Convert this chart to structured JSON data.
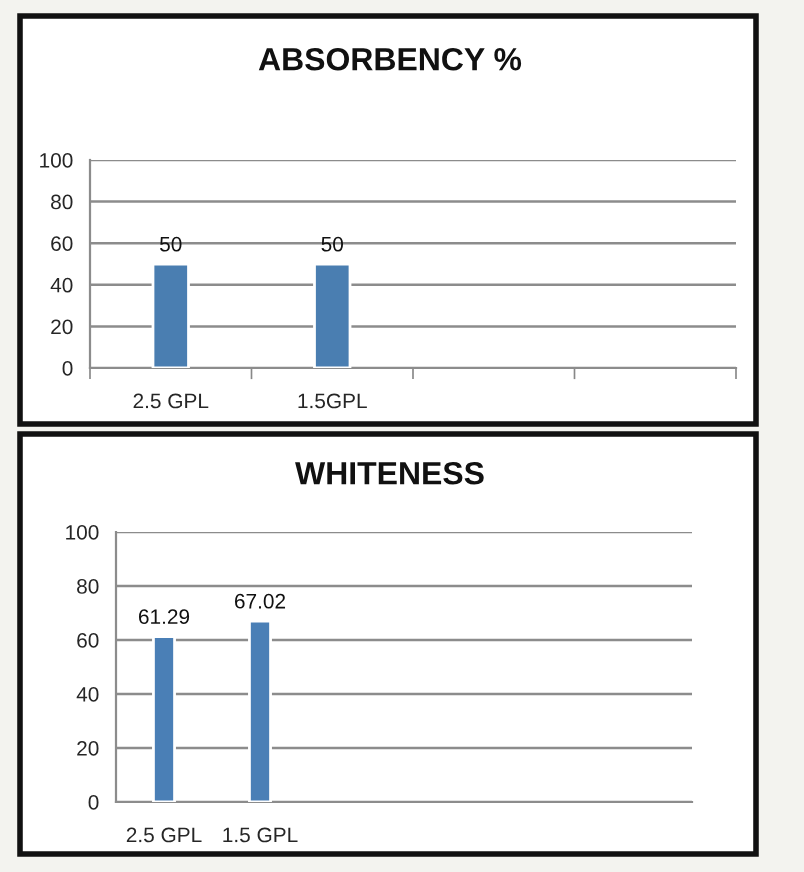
{
  "chart_data": [
    {
      "type": "bar",
      "title": "ABSORBENCY %",
      "categories": [
        "2.5 GPL",
        "1.5GPL",
        null,
        null
      ],
      "series": [
        {
          "color": "#4a7eb1",
          "values": [
            50,
            50,
            null,
            null
          ]
        }
      ],
      "ylim": [
        0,
        100
      ],
      "yticks": [
        0,
        20,
        40,
        60,
        80,
        100
      ],
      "grid": "y",
      "data_labels": true
    },
    {
      "type": "bar",
      "title": "WHITENESS",
      "categories": [
        "2.5 GPL",
        "1.5 GPL",
        null,
        null,
        null,
        null
      ],
      "series": [
        {
          "color": "#4a7fb6",
          "values": [
            61.29,
            67.02,
            null,
            null,
            null,
            null
          ]
        }
      ],
      "ylim": [
        0,
        100
      ],
      "yticks": [
        0,
        20,
        40,
        60,
        80,
        100
      ],
      "grid": "y",
      "data_labels": true
    }
  ]
}
